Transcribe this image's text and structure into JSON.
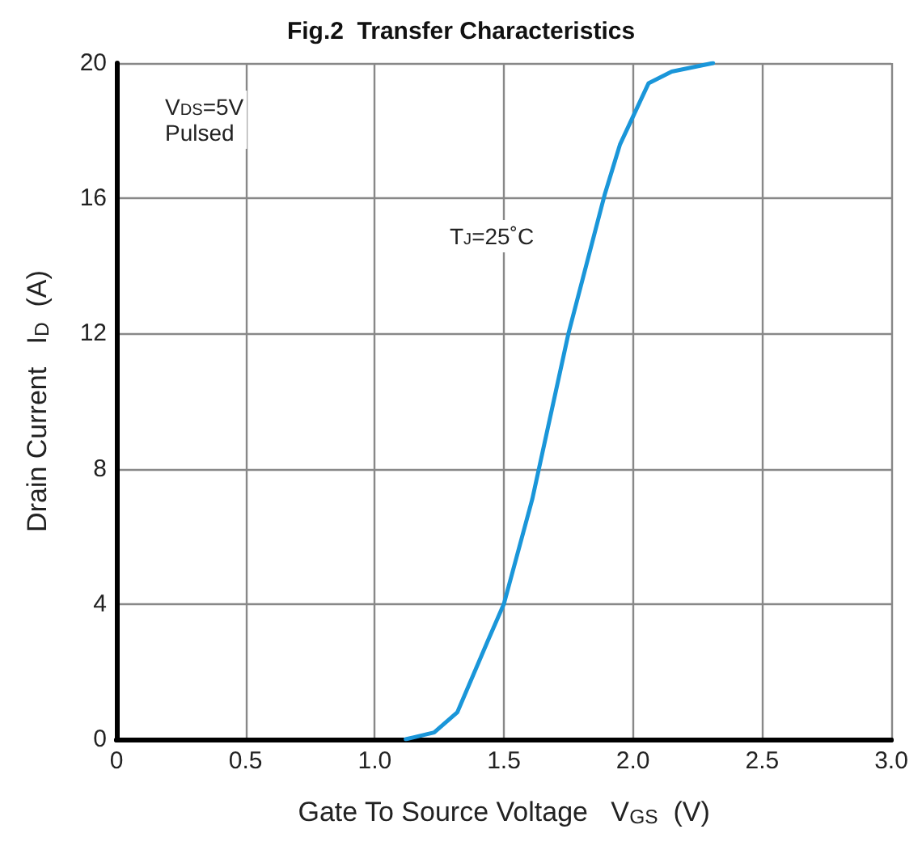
{
  "chart_data": {
    "type": "line",
    "title": "Fig.2  Transfer Characteristics",
    "xlabel": "Gate To Source Voltage   V$_{GS}$  (V)",
    "ylabel": "Drain Current   I$_{D}$  (A)",
    "annotations": [
      "V$_{DS}$=5V\nPulsed",
      "T$_{J}$=25˚C"
    ],
    "series": [
      {
        "color": "#1a96d9",
        "x": [
          1.12,
          1.23,
          1.32,
          1.44,
          1.5,
          1.61,
          1.75,
          1.89,
          1.95,
          2.06,
          2.15,
          2.31
        ],
        "values": [
          0,
          0.2,
          0.8,
          2.95,
          4.0,
          7.1,
          12.0,
          16.1,
          17.6,
          19.4,
          19.75,
          20.0
        ]
      }
    ],
    "xlim": [
      0,
      3.0
    ],
    "xticks": [
      0,
      0.5,
      {
        "value": 1,
        "label": "1.0"
      },
      1.5,
      {
        "value": 2,
        "label": "2.0"
      },
      2.5,
      {
        "value": 3,
        "label": "3.0"
      }
    ],
    "ylim": [
      0,
      20
    ],
    "yticks": [
      0,
      4,
      8,
      12,
      16,
      20
    ],
    "grid": true,
    "marker": "none",
    "line_style": "solid"
  }
}
